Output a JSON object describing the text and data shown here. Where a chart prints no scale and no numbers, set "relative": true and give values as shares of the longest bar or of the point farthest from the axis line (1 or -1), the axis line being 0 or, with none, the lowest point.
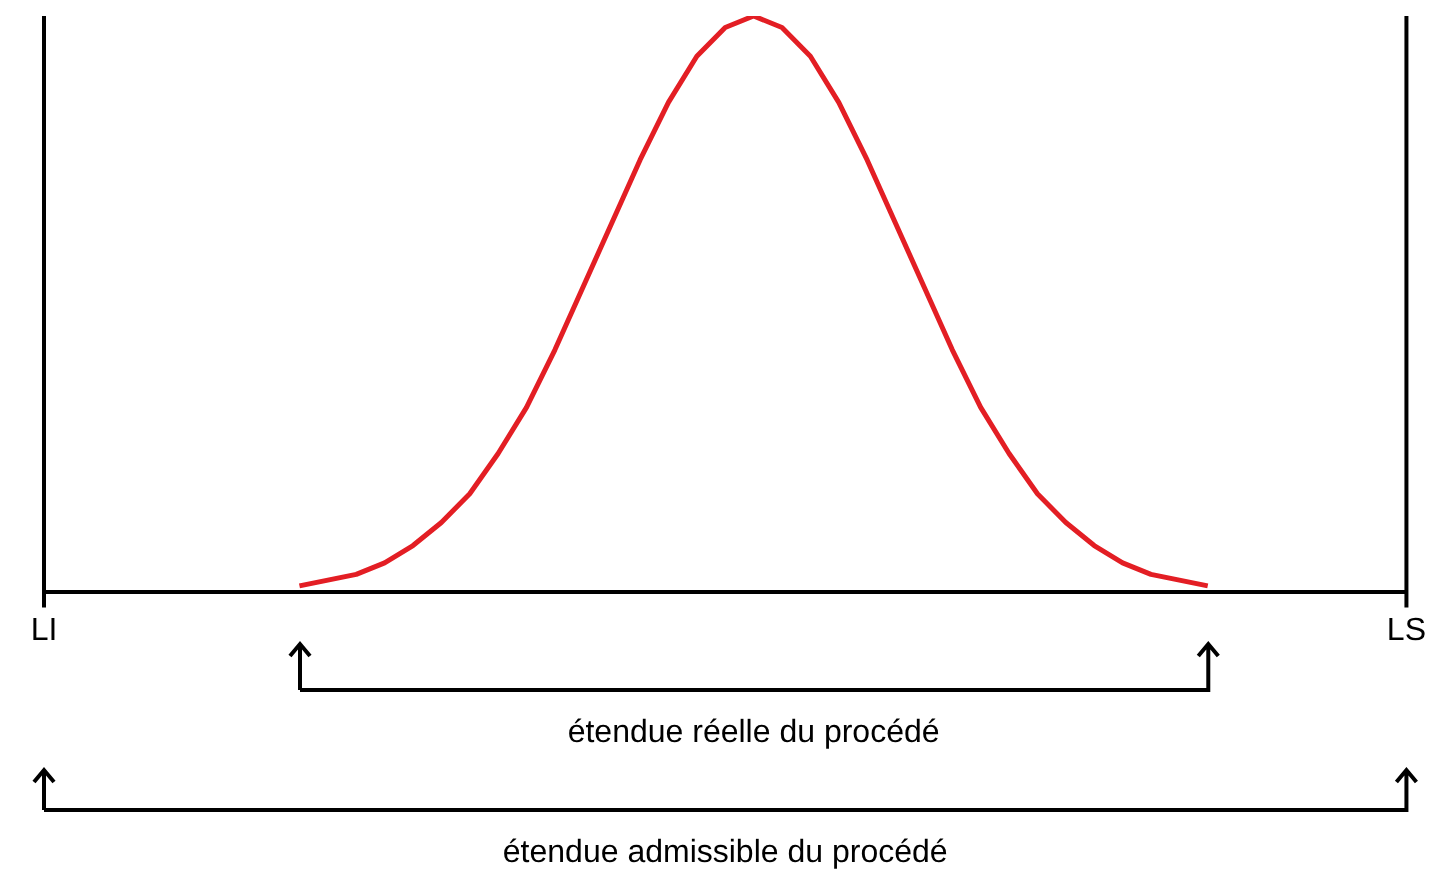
{
  "chart_data": {
    "type": "line",
    "relative": true,
    "legend": false,
    "grid": false,
    "marker": "none",
    "categories": [
      "LI",
      null,
      null,
      null,
      null,
      null,
      null,
      null,
      null,
      null,
      null,
      null,
      null,
      null,
      null,
      null,
      null,
      null,
      null,
      null,
      null,
      null,
      null,
      null,
      null,
      null,
      null,
      null,
      null,
      null,
      null,
      null,
      null,
      null,
      null,
      null,
      null,
      null,
      null,
      null,
      null,
      null,
      null,
      null,
      null,
      null,
      null,
      null,
      "LS"
    ],
    "series": [
      {
        "color": "#e31e24",
        "values": [
          null,
          null,
          null,
          null,
          null,
          null,
          null,
          null,
          null,
          0.01,
          0.02,
          0.03,
          0.05,
          0.08,
          0.12,
          0.17,
          0.24,
          0.32,
          0.42,
          0.53,
          0.64,
          0.75,
          0.85,
          0.93,
          0.98,
          1,
          0.98,
          0.93,
          0.85,
          0.75,
          0.64,
          0.53,
          0.42,
          0.32,
          0.24,
          0.17,
          0.12,
          0.08,
          0.05,
          0.03,
          0.02,
          0.01,
          null,
          null,
          null,
          null,
          null,
          null,
          null
        ]
      }
    ],
    "ref_lines": [
      {
        "axis": "x",
        "value": "LI",
        "color": "#000000"
      },
      {
        "axis": "x",
        "value": "LS",
        "color": "#000000"
      }
    ],
    "annotations": [
      "étendue réelle du procédé",
      "étendue admissible du procédé"
    ]
  }
}
